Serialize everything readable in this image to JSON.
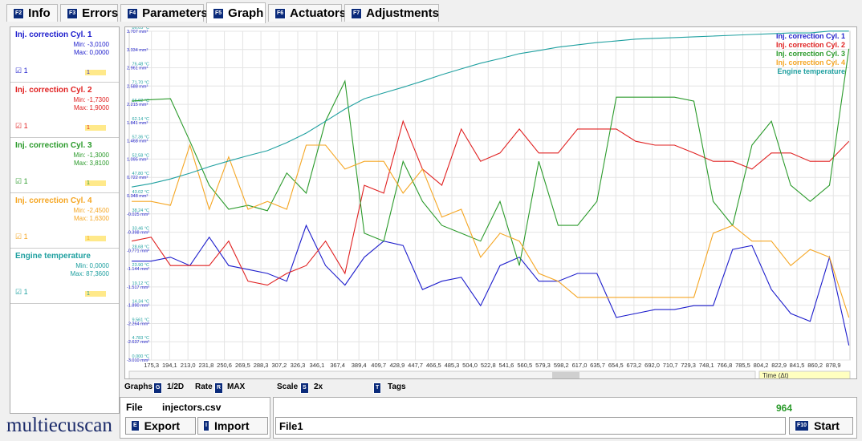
{
  "tabs": [
    {
      "key": "F2",
      "label": "Info"
    },
    {
      "key": "F3",
      "label": "Errors"
    },
    {
      "key": "F4",
      "label": "Parameters"
    },
    {
      "key": "F5",
      "label": "Graph"
    },
    {
      "key": "F6",
      "label": "Actuators"
    },
    {
      "key": "F7",
      "label": "Adjustments"
    }
  ],
  "active_tab": 3,
  "legend_panel": [
    {
      "name": "Inj. correction Cyl. 1",
      "min": "Min: -3,0100",
      "max": "Max: 0,0000",
      "check": "1",
      "pick": "1"
    },
    {
      "name": "Inj. correction Cyl. 2",
      "min": "Min: -1,7300",
      "max": "Max: 1,9000",
      "check": "1",
      "pick": "1"
    },
    {
      "name": "Inj. correction Cyl. 3",
      "min": "Min: -1,3000",
      "max": "Max: 3,8100",
      "check": "1",
      "pick": "1"
    },
    {
      "name": "Inj. correction Cyl. 4",
      "min": "Min: -2,4500",
      "max": "Max: 1,6300",
      "check": "1",
      "pick": "1"
    },
    {
      "name": "Engine temperature",
      "min": "Min: 0,0000",
      "max": "Max: 87,3600",
      "check": "1",
      "pick": "1"
    }
  ],
  "chart_data": {
    "type": "line",
    "x": [
      155,
      175,
      195,
      215,
      235,
      255,
      275,
      295,
      315,
      335,
      355,
      375,
      395,
      415,
      435,
      455,
      475,
      495,
      515,
      535,
      555,
      575,
      595,
      615,
      635,
      655,
      675,
      695,
      715,
      735,
      755,
      775,
      795,
      815,
      835,
      855,
      875,
      895
    ],
    "xlim": [
      152.4,
      896.1
    ],
    "xticks": [
      {
        "value": 175.3,
        "label": "175,3"
      },
      {
        "value": 194.1,
        "label": "194,1"
      },
      {
        "value": 213.0,
        "label": "213,0"
      },
      {
        "value": 231.8,
        "label": "231,8"
      },
      {
        "value": 250.6,
        "label": "250,6"
      },
      {
        "value": 269.5,
        "label": "269,5"
      },
      {
        "value": 288.3,
        "label": "288,3"
      },
      {
        "value": 307.2,
        "label": "307,2"
      },
      {
        "value": 326.3,
        "label": "326,3"
      },
      {
        "value": 346.1,
        "label": "346,1"
      },
      {
        "value": 367.4,
        "label": "367,4"
      },
      {
        "value": 389.4,
        "label": "389,4"
      },
      {
        "value": 409.7,
        "label": "409,7"
      },
      {
        "value": 428.9,
        "label": "428,9"
      },
      {
        "value": 447.7,
        "label": "447,7"
      },
      {
        "value": 466.5,
        "label": "466,5"
      },
      {
        "value": 485.3,
        "label": "485,3"
      },
      {
        "value": 504.0,
        "label": "504,0"
      },
      {
        "value": 522.8,
        "label": "522,8"
      },
      {
        "value": 541.6,
        "label": "541,6"
      },
      {
        "value": 560.5,
        "label": "560,5"
      },
      {
        "value": 579.3,
        "label": "579,3"
      },
      {
        "value": 598.2,
        "label": "598,2"
      },
      {
        "value": 617.0,
        "label": "617,0"
      },
      {
        "value": 635.7,
        "label": "635,7"
      },
      {
        "value": 654.5,
        "label": "654,5"
      },
      {
        "value": 673.2,
        "label": "673,2"
      },
      {
        "value": 692.0,
        "label": "692,0"
      },
      {
        "value": 710.7,
        "label": "710,7"
      },
      {
        "value": 729.3,
        "label": "729,3"
      },
      {
        "value": 748.1,
        "label": "748,1"
      },
      {
        "value": 766.8,
        "label": "766,8"
      },
      {
        "value": 785.5,
        "label": "785,5"
      },
      {
        "value": 804.2,
        "label": "804,2"
      },
      {
        "value": 822.9,
        "label": "822,9"
      },
      {
        "value": 841.5,
        "label": "841,5"
      },
      {
        "value": 860.2,
        "label": "860,2"
      },
      {
        "value": 878.9,
        "label": "878,9"
      }
    ],
    "ylim": [
      -3.01,
      3.707
    ],
    "yticks": [
      {
        "value": -3.01,
        "label": "-3.010 mm³"
      },
      {
        "value": -2.637,
        "label": "-2.637 mm³"
      },
      {
        "value": -2.264,
        "label": "-2.264 mm³"
      },
      {
        "value": -1.89,
        "label": "-1.890 mm³"
      },
      {
        "value": -1.517,
        "label": "-1.517 mm³"
      },
      {
        "value": -1.144,
        "label": "-1.144 mm³"
      },
      {
        "value": -0.771,
        "label": "-0.771 mm³"
      },
      {
        "value": -0.398,
        "label": "-0.398 mm³"
      },
      {
        "value": -0.025,
        "label": "-0.025 mm³"
      },
      {
        "value": 0.348,
        "label": "0.348 mm³"
      },
      {
        "value": 0.722,
        "label": "0.722 mm³"
      },
      {
        "value": 1.095,
        "label": "1.095 mm³"
      },
      {
        "value": 1.468,
        "label": "1.468 mm³"
      },
      {
        "value": 1.841,
        "label": "1.841 mm³"
      },
      {
        "value": 2.215,
        "label": "2.215 mm³"
      },
      {
        "value": 2.588,
        "label": "2.588 mm³"
      },
      {
        "value": 2.961,
        "label": "2.961 mm³"
      },
      {
        "value": 3.334,
        "label": "3.334 mm³"
      },
      {
        "value": 3.707,
        "label": "3.707 mm³"
      }
    ],
    "y2lim": [
      0,
      86.05
    ],
    "y2ticks": [
      {
        "value": 0,
        "label": "0.000 °C"
      },
      {
        "value": 4.783,
        "label": "4.783 °C"
      },
      {
        "value": 9.561,
        "label": "9.561 °C"
      },
      {
        "value": 14.34,
        "label": "14.34 °C"
      },
      {
        "value": 19.12,
        "label": "19.12 °C"
      },
      {
        "value": 23.9,
        "label": "23.90 °C"
      },
      {
        "value": 28.68,
        "label": "28.68 °C"
      },
      {
        "value": 33.46,
        "label": "33.46 °C"
      },
      {
        "value": 38.24,
        "label": "38.24 °C"
      },
      {
        "value": 43.02,
        "label": "43.02 °C"
      },
      {
        "value": 47.8,
        "label": "47.80 °C"
      },
      {
        "value": 52.58,
        "label": "52.58 °C"
      },
      {
        "value": 57.36,
        "label": "57.36 °C"
      },
      {
        "value": 62.14,
        "label": "62.14 °C"
      },
      {
        "value": 66.92,
        "label": "66.92 °C"
      },
      {
        "value": 71.7,
        "label": "71.70 °C"
      },
      {
        "value": 76.48,
        "label": "76.48 °C"
      },
      {
        "value": 86.05,
        "label": "86.05 °C"
      }
    ],
    "grid": true,
    "legend": "upper right",
    "series": [
      {
        "name": "Inj. correction Cyl. 1",
        "color": "#1c1ccc",
        "values": [
          -0.99,
          -0.99,
          -0.91,
          -1.08,
          -0.5,
          -1.08,
          -1.16,
          -1.24,
          -1.4,
          -0.26,
          -1.08,
          -1.48,
          -0.91,
          -0.58,
          -0.67,
          -1.57,
          -1.4,
          -1.32,
          -1.9,
          -1.08,
          -0.91,
          -1.4,
          -1.4,
          -1.24,
          -1.24,
          -2.14,
          -2.06,
          -1.98,
          -1.98,
          -1.9,
          -1.9,
          -0.75,
          -0.67,
          -1.57,
          -2.06,
          -2.22,
          -0.91,
          -2.71
        ]
      },
      {
        "name": "Inj. correction Cyl. 2",
        "color": "#e02020",
        "values": [
          -0.58,
          -0.5,
          -1.08,
          -1.08,
          -1.08,
          -0.58,
          -1.4,
          -1.48,
          -1.24,
          -1.08,
          -0.58,
          -1.24,
          0.56,
          0.4,
          1.87,
          0.89,
          0.56,
          1.71,
          1.05,
          1.22,
          1.71,
          1.22,
          1.22,
          1.71,
          1.71,
          1.71,
          1.46,
          1.38,
          1.38,
          1.22,
          1.05,
          1.05,
          0.89,
          1.22,
          1.22,
          1.05,
          1.05,
          1.46
        ]
      },
      {
        "name": "Inj. correction Cyl. 3",
        "color": "#2a9a2a",
        "values": [
          2.28,
          2.31,
          2.33,
          1.46,
          0.56,
          0.07,
          0.15,
          0.04,
          0.81,
          0.4,
          1.87,
          2.69,
          -0.42,
          -0.58,
          1.05,
          0.23,
          -0.26,
          -0.42,
          -0.58,
          0.23,
          -1.08,
          1.05,
          -0.26,
          -0.26,
          0.23,
          2.36,
          2.36,
          2.36,
          2.36,
          2.28,
          0.23,
          -0.26,
          1.38,
          1.87,
          0.56,
          0.23,
          0.56,
          3.35
        ]
      },
      {
        "name": "Inj. correction Cyl. 4",
        "color": "#f5a623",
        "values": [
          0.23,
          0.23,
          0.15,
          1.38,
          0.07,
          1.14,
          0.07,
          0.23,
          0.07,
          1.38,
          1.38,
          0.89,
          1.05,
          1.05,
          0.4,
          0.89,
          -0.09,
          0.07,
          -0.91,
          -0.42,
          -0.58,
          -1.24,
          -1.4,
          -1.73,
          -1.73,
          -1.73,
          -1.73,
          -1.73,
          -1.73,
          -1.73,
          -0.42,
          -0.26,
          -0.58,
          -0.58,
          -1.08,
          -0.75,
          -0.91,
          -2.14
        ]
      },
      {
        "name": "Engine temperature",
        "color": "#1fa0a0",
        "axis": "y2",
        "values": [
          45.3,
          46.2,
          47.4,
          48.9,
          50.6,
          52.1,
          53.5,
          54.8,
          56.9,
          59.4,
          62.5,
          65.7,
          68.4,
          69.9,
          71.4,
          73.0,
          74.7,
          76.2,
          77.7,
          78.9,
          80.2,
          81.0,
          81.9,
          82.5,
          83.1,
          83.5,
          84.0,
          84.2,
          84.4,
          84.6,
          84.8,
          85.0,
          85.2,
          85.4,
          85.6,
          85.6,
          86.1,
          86.1
        ]
      }
    ],
    "time_label": "Time (Δt)"
  },
  "controls": {
    "graphs": "Graphs",
    "graphs_key": "G",
    "graphs_val": "1/2D",
    "rate": "Rate",
    "rate_key": "R",
    "rate_val": "MAX",
    "scale": "Scale",
    "scale_key": "S",
    "scale_val": "2x",
    "tags_key": "T",
    "tags": "Tags"
  },
  "file": {
    "label": "File",
    "name": "injectors.csv",
    "export_key": "E",
    "export": "Export",
    "import_key": "I",
    "import": "Import",
    "field": "File1",
    "count": "964",
    "start_key": "F10",
    "start": "Start"
  },
  "logo": "multiecuscan"
}
